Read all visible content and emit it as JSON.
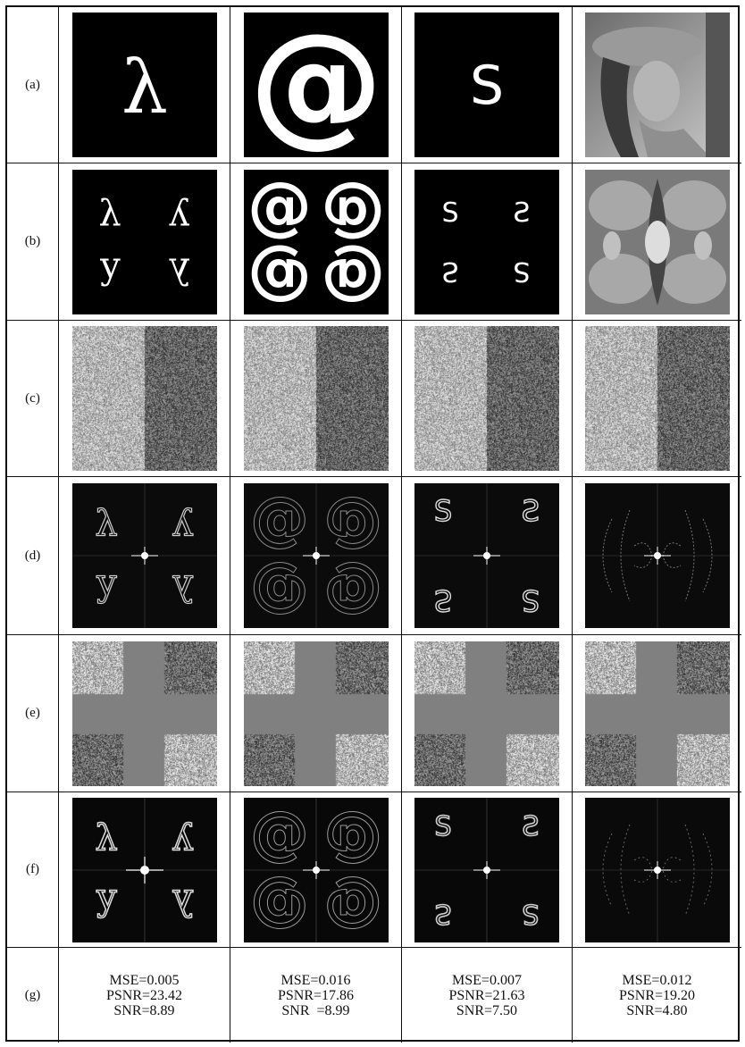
{
  "row_labels": [
    "(a)",
    "(b)",
    "(c)",
    "(d)",
    "(e)",
    "(f)",
    "(g)"
  ],
  "glyphs": [
    "λ",
    "@",
    "S"
  ],
  "metrics": [
    {
      "mse": "MSE=0.005",
      "psnr": "PSNR=23.42",
      "snr": "SNR=8.89"
    },
    {
      "mse": "MSE=0.016",
      "psnr": "PSNR=17.86",
      "snr": "SNR  =8.99"
    },
    {
      "mse": "MSE=0.007",
      "psnr": "PSNR=21.63",
      "snr": "SNR=7.50"
    },
    {
      "mse": "MSE=0.012",
      "psnr": "PSNR=19.20",
      "snr": "SNR=4.80"
    }
  ]
}
